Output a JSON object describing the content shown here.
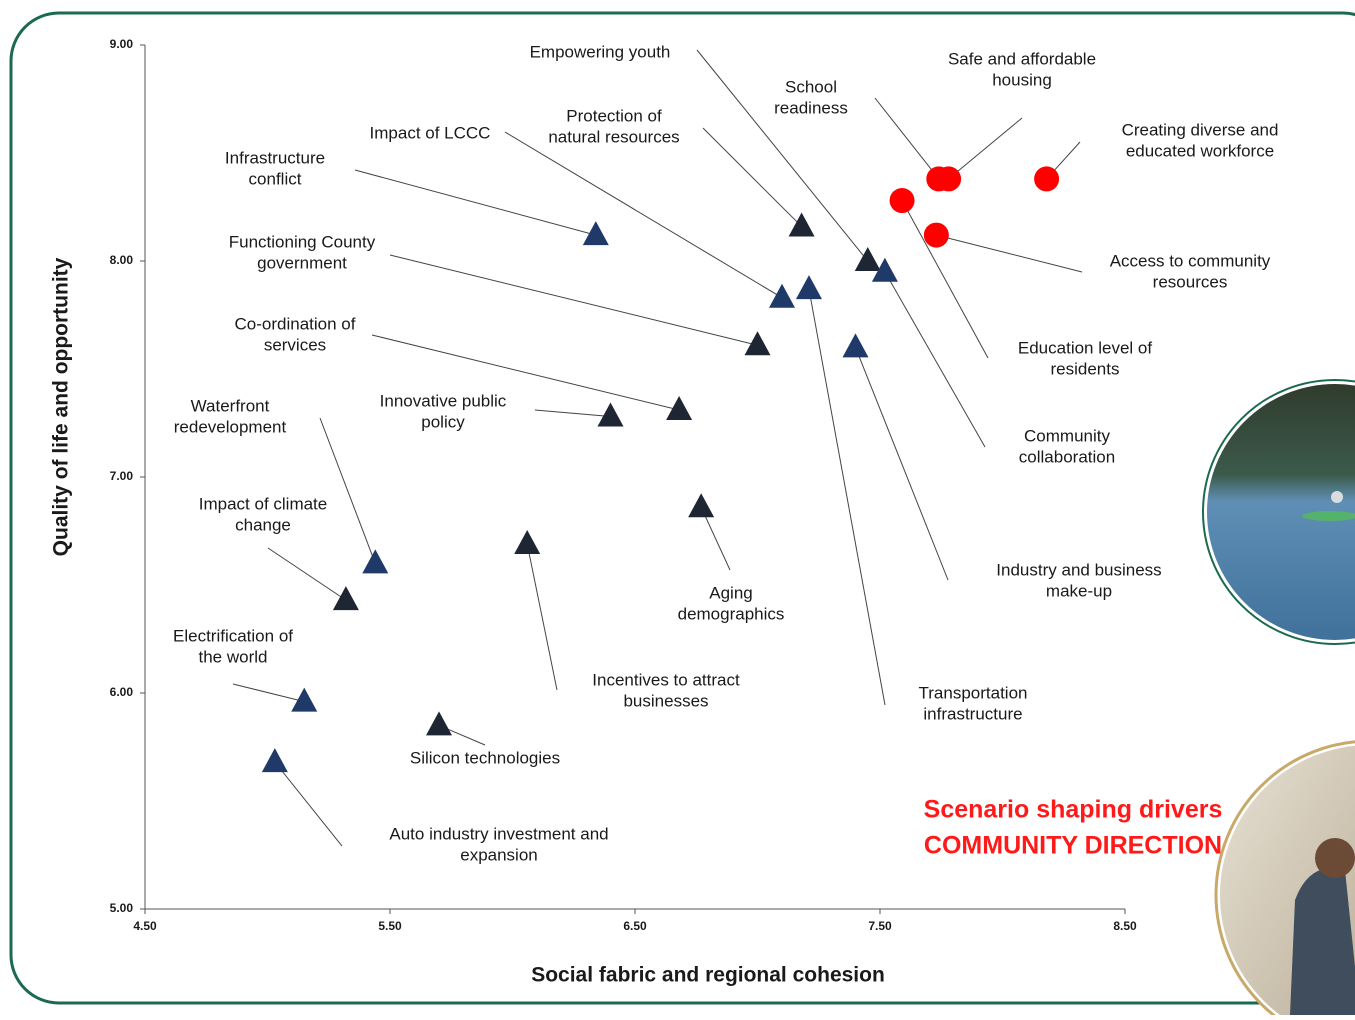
{
  "chart_data": {
    "type": "scatter",
    "x_label": "Social fabric and regional cohesion",
    "y_label": "Quality of life and opportunity",
    "xlim": [
      4.5,
      8.5
    ],
    "ylim": [
      5.0,
      9.0
    ],
    "xticks": [
      {
        "value": 4.5,
        "label": "4.50"
      },
      {
        "value": 5.5,
        "label": "5.50"
      },
      {
        "value": 6.5,
        "label": "6.50"
      },
      {
        "value": 7.5,
        "label": "7.50"
      },
      {
        "value": 8.5,
        "label": "8.50"
      }
    ],
    "yticks": [
      {
        "value": 5.0,
        "label": "5.00"
      },
      {
        "value": 6.0,
        "label": "6.00"
      },
      {
        "value": 7.0,
        "label": "7.00"
      },
      {
        "value": 8.0,
        "label": "8.00"
      },
      {
        "value": 9.0,
        "label": "9.00"
      }
    ],
    "annotation": [
      "Scenario shaping drivers",
      "COMMUNITY DIRECTION"
    ],
    "points": [
      {
        "label": [
          "Infrastructure",
          "conflict"
        ],
        "x": 6.34,
        "y": 8.12,
        "marker": "triangle",
        "color": "#1f3a68"
      },
      {
        "label": [
          "Impact of LCCC"
        ],
        "x": 7.1,
        "y": 7.83,
        "marker": "triangle",
        "color": "#1f3a68"
      },
      {
        "label": [
          "Empowering youth"
        ],
        "x": 7.45,
        "y": 8.0,
        "marker": "triangle",
        "color": "#1e2633"
      },
      {
        "label": [
          "Protection of",
          "natural resources"
        ],
        "x": 7.18,
        "y": 8.16,
        "marker": "triangle",
        "color": "#1e2633"
      },
      {
        "label": [
          "Functioning County",
          "government"
        ],
        "x": 7.0,
        "y": 7.61,
        "marker": "triangle",
        "color": "#1e2633"
      },
      {
        "label": [
          "Co-ordination of",
          "services"
        ],
        "x": 6.68,
        "y": 7.31,
        "marker": "triangle",
        "color": "#1e2633"
      },
      {
        "label": [
          "Innovative public",
          "policy"
        ],
        "x": 6.4,
        "y": 7.28,
        "marker": "triangle",
        "color": "#1e2633"
      },
      {
        "label": [
          "Waterfront",
          "redevelopment"
        ],
        "x": 5.44,
        "y": 6.6,
        "marker": "triangle",
        "color": "#1f3a68"
      },
      {
        "label": [
          "Impact of climate",
          "change"
        ],
        "x": 5.32,
        "y": 6.43,
        "marker": "triangle",
        "color": "#1e2633"
      },
      {
        "label": [
          "Incentives to attract",
          "businesses"
        ],
        "x": 6.06,
        "y": 6.69,
        "marker": "triangle",
        "color": "#1e2633"
      },
      {
        "label": [
          "Aging",
          "demographics"
        ],
        "x": 6.77,
        "y": 6.86,
        "marker": "triangle",
        "color": "#1e2633"
      },
      {
        "label": [
          "Electrification of",
          "the world"
        ],
        "x": 5.15,
        "y": 5.96,
        "marker": "triangle",
        "color": "#1f3a68"
      },
      {
        "label": [
          "Silicon technologies"
        ],
        "x": 5.7,
        "y": 5.85,
        "marker": "triangle",
        "color": "#1e2633"
      },
      {
        "label": [
          "Auto industry investment and",
          "expansion"
        ],
        "x": 5.03,
        "y": 5.68,
        "marker": "triangle",
        "color": "#1f3a68"
      },
      {
        "label": [
          "Community",
          "collaboration"
        ],
        "x": 7.52,
        "y": 7.95,
        "marker": "triangle",
        "color": "#1f3a68"
      },
      {
        "label": [
          "Transportation",
          "infrastructure"
        ],
        "x": 7.21,
        "y": 7.87,
        "marker": "triangle",
        "color": "#1f3a68"
      },
      {
        "label": [
          "Industry and business",
          "make-up"
        ],
        "x": 7.4,
        "y": 7.6,
        "marker": "triangle",
        "color": "#1f3a68"
      },
      {
        "label": [
          "Safe and affordable",
          "housing"
        ],
        "x": 7.78,
        "y": 8.38,
        "marker": "circle",
        "color": "#ff0000"
      },
      {
        "label": [
          "School",
          "readiness"
        ],
        "x": 7.74,
        "y": 8.38,
        "marker": "circle",
        "color": "#ff0000"
      },
      {
        "label": [
          "Creating diverse and",
          "educated workforce"
        ],
        "x": 8.18,
        "y": 8.38,
        "marker": "circle",
        "color": "#ff0000"
      },
      {
        "label": [
          "Access to community",
          "resources"
        ],
        "x": 7.73,
        "y": 8.12,
        "marker": "circle",
        "color": "#ff0000"
      },
      {
        "label": [
          "Education level of",
          "residents"
        ],
        "x": 7.59,
        "y": 8.28,
        "marker": "circle",
        "color": "#ff0000"
      }
    ]
  }
}
